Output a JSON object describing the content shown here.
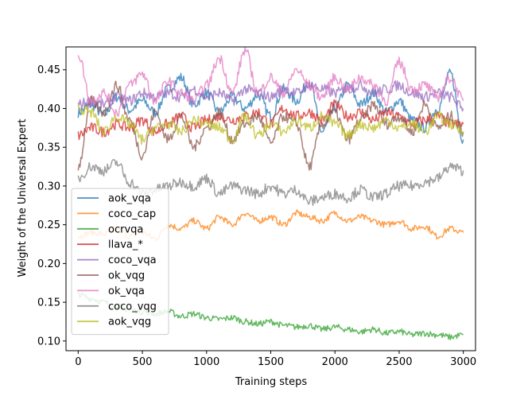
{
  "chart_data": {
    "type": "line",
    "title": "",
    "xlabel": "Training steps",
    "ylabel": "Weight of the Universal Expert",
    "xlim": [
      -95,
      3095
    ],
    "ylim": [
      0.0875,
      0.4795
    ],
    "x_ticks": [
      0,
      500,
      1000,
      1500,
      2000,
      2500,
      3000
    ],
    "y_ticks": [
      0.1,
      0.15,
      0.2,
      0.25,
      0.3,
      0.35,
      0.4,
      0.45
    ],
    "grid": false,
    "legend_position": "lower-left",
    "series": [
      {
        "name": "aok_vqa",
        "color": "#1f77b4",
        "points": [
          [
            0,
            0.395
          ],
          [
            100,
            0.405
          ],
          [
            200,
            0.392
          ],
          [
            300,
            0.415
          ],
          [
            400,
            0.398
          ],
          [
            500,
            0.41
          ],
          [
            600,
            0.395
          ],
          [
            700,
            0.425
          ],
          [
            800,
            0.44
          ],
          [
            900,
            0.405
          ],
          [
            1000,
            0.42
          ],
          [
            1100,
            0.395
          ],
          [
            1200,
            0.415
          ],
          [
            1300,
            0.4
          ],
          [
            1400,
            0.418
          ],
          [
            1500,
            0.39
          ],
          [
            1600,
            0.425
          ],
          [
            1700,
            0.41
          ],
          [
            1800,
            0.435
          ],
          [
            1900,
            0.37
          ],
          [
            2000,
            0.4
          ],
          [
            2100,
            0.43
          ],
          [
            2200,
            0.405
          ],
          [
            2300,
            0.42
          ],
          [
            2400,
            0.395
          ],
          [
            2500,
            0.41
          ],
          [
            2600,
            0.385
          ],
          [
            2700,
            0.375
          ],
          [
            2800,
            0.4
          ],
          [
            2900,
            0.445
          ],
          [
            3000,
            0.36
          ]
        ]
      },
      {
        "name": "coco_cap",
        "color": "#ff7f0e",
        "points": [
          [
            0,
            0.235
          ],
          [
            100,
            0.24
          ],
          [
            200,
            0.238
          ],
          [
            300,
            0.245
          ],
          [
            400,
            0.235
          ],
          [
            500,
            0.24
          ],
          [
            600,
            0.232
          ],
          [
            700,
            0.25
          ],
          [
            800,
            0.245
          ],
          [
            900,
            0.255
          ],
          [
            1000,
            0.245
          ],
          [
            1100,
            0.26
          ],
          [
            1200,
            0.25
          ],
          [
            1300,
            0.265
          ],
          [
            1400,
            0.255
          ],
          [
            1500,
            0.26
          ],
          [
            1600,
            0.25
          ],
          [
            1700,
            0.265
          ],
          [
            1800,
            0.26
          ],
          [
            1900,
            0.255
          ],
          [
            2000,
            0.265
          ],
          [
            2100,
            0.255
          ],
          [
            2200,
            0.26
          ],
          [
            2300,
            0.255
          ],
          [
            2400,
            0.25
          ],
          [
            2500,
            0.255
          ],
          [
            2600,
            0.245
          ],
          [
            2700,
            0.248
          ],
          [
            2800,
            0.235
          ],
          [
            2900,
            0.245
          ],
          [
            3000,
            0.24
          ]
        ]
      },
      {
        "name": "ocrvqa",
        "color": "#2ca02c",
        "points": [
          [
            0,
            0.16
          ],
          [
            100,
            0.155
          ],
          [
            200,
            0.15
          ],
          [
            300,
            0.145
          ],
          [
            400,
            0.14
          ],
          [
            500,
            0.138
          ],
          [
            600,
            0.135
          ],
          [
            700,
            0.138
          ],
          [
            800,
            0.132
          ],
          [
            900,
            0.135
          ],
          [
            1000,
            0.13
          ],
          [
            1100,
            0.128
          ],
          [
            1200,
            0.13
          ],
          [
            1300,
            0.125
          ],
          [
            1400,
            0.122
          ],
          [
            1500,
            0.125
          ],
          [
            1600,
            0.12
          ],
          [
            1700,
            0.118
          ],
          [
            1800,
            0.12
          ],
          [
            1900,
            0.115
          ],
          [
            2000,
            0.118
          ],
          [
            2100,
            0.115
          ],
          [
            2200,
            0.112
          ],
          [
            2300,
            0.115
          ],
          [
            2400,
            0.11
          ],
          [
            2500,
            0.112
          ],
          [
            2600,
            0.108
          ],
          [
            2700,
            0.11
          ],
          [
            2800,
            0.108
          ],
          [
            2900,
            0.105
          ],
          [
            3000,
            0.108
          ]
        ]
      },
      {
        "name": "llava_*",
        "color": "#d62728",
        "points": [
          [
            0,
            0.365
          ],
          [
            100,
            0.375
          ],
          [
            200,
            0.37
          ],
          [
            300,
            0.38
          ],
          [
            400,
            0.375
          ],
          [
            500,
            0.385
          ],
          [
            600,
            0.37
          ],
          [
            700,
            0.38
          ],
          [
            800,
            0.39
          ],
          [
            900,
            0.375
          ],
          [
            1000,
            0.385
          ],
          [
            1100,
            0.39
          ],
          [
            1200,
            0.385
          ],
          [
            1300,
            0.39
          ],
          [
            1400,
            0.395
          ],
          [
            1500,
            0.38
          ],
          [
            1600,
            0.4
          ],
          [
            1700,
            0.39
          ],
          [
            1800,
            0.395
          ],
          [
            1900,
            0.385
          ],
          [
            2000,
            0.405
          ],
          [
            2100,
            0.39
          ],
          [
            2200,
            0.395
          ],
          [
            2300,
            0.385
          ],
          [
            2400,
            0.395
          ],
          [
            2500,
            0.39
          ],
          [
            2600,
            0.38
          ],
          [
            2700,
            0.385
          ],
          [
            2800,
            0.39
          ],
          [
            2900,
            0.38
          ],
          [
            3000,
            0.38
          ]
        ]
      },
      {
        "name": "coco_vqa",
        "color": "#9467bd",
        "points": [
          [
            0,
            0.405
          ],
          [
            100,
            0.41
          ],
          [
            200,
            0.405
          ],
          [
            300,
            0.415
          ],
          [
            400,
            0.41
          ],
          [
            500,
            0.42
          ],
          [
            600,
            0.415
          ],
          [
            700,
            0.42
          ],
          [
            800,
            0.415
          ],
          [
            900,
            0.425
          ],
          [
            1000,
            0.415
          ],
          [
            1100,
            0.42
          ],
          [
            1200,
            0.41
          ],
          [
            1300,
            0.425
          ],
          [
            1400,
            0.42
          ],
          [
            1500,
            0.415
          ],
          [
            1600,
            0.425
          ],
          [
            1700,
            0.42
          ],
          [
            1800,
            0.43
          ],
          [
            1900,
            0.425
          ],
          [
            2000,
            0.42
          ],
          [
            2100,
            0.425
          ],
          [
            2200,
            0.43
          ],
          [
            2300,
            0.42
          ],
          [
            2400,
            0.425
          ],
          [
            2500,
            0.43
          ],
          [
            2600,
            0.42
          ],
          [
            2700,
            0.415
          ],
          [
            2800,
            0.42
          ],
          [
            2900,
            0.415
          ],
          [
            3000,
            0.4
          ]
        ]
      },
      {
        "name": "ok_vqg",
        "color": "#8c564b",
        "points": [
          [
            0,
            0.325
          ],
          [
            100,
            0.41
          ],
          [
            200,
            0.395
          ],
          [
            300,
            0.43
          ],
          [
            400,
            0.385
          ],
          [
            500,
            0.34
          ],
          [
            600,
            0.395
          ],
          [
            700,
            0.36
          ],
          [
            800,
            0.39
          ],
          [
            900,
            0.35
          ],
          [
            1000,
            0.375
          ],
          [
            1100,
            0.395
          ],
          [
            1200,
            0.36
          ],
          [
            1300,
            0.38
          ],
          [
            1400,
            0.39
          ],
          [
            1500,
            0.355
          ],
          [
            1600,
            0.39
          ],
          [
            1700,
            0.38
          ],
          [
            1800,
            0.325
          ],
          [
            1900,
            0.38
          ],
          [
            2000,
            0.395
          ],
          [
            2100,
            0.36
          ],
          [
            2200,
            0.385
          ],
          [
            2300,
            0.405
          ],
          [
            2400,
            0.38
          ],
          [
            2500,
            0.39
          ],
          [
            2600,
            0.37
          ],
          [
            2700,
            0.405
          ],
          [
            2800,
            0.375
          ],
          [
            2900,
            0.39
          ],
          [
            3000,
            0.37
          ]
        ]
      },
      {
        "name": "ok_vqa",
        "color": "#e377c2",
        "points": [
          [
            0,
            0.47
          ],
          [
            100,
            0.41
          ],
          [
            200,
            0.42
          ],
          [
            300,
            0.395
          ],
          [
            400,
            0.43
          ],
          [
            500,
            0.445
          ],
          [
            600,
            0.41
          ],
          [
            700,
            0.435
          ],
          [
            800,
            0.42
          ],
          [
            900,
            0.41
          ],
          [
            1000,
            0.43
          ],
          [
            1100,
            0.465
          ],
          [
            1200,
            0.42
          ],
          [
            1300,
            0.475
          ],
          [
            1400,
            0.42
          ],
          [
            1500,
            0.44
          ],
          [
            1600,
            0.42
          ],
          [
            1700,
            0.45
          ],
          [
            1800,
            0.43
          ],
          [
            1900,
            0.415
          ],
          [
            2000,
            0.44
          ],
          [
            2100,
            0.425
          ],
          [
            2200,
            0.44
          ],
          [
            2300,
            0.43
          ],
          [
            2400,
            0.41
          ],
          [
            2500,
            0.46
          ],
          [
            2600,
            0.425
          ],
          [
            2700,
            0.43
          ],
          [
            2800,
            0.415
          ],
          [
            2900,
            0.44
          ],
          [
            3000,
            0.41
          ]
        ]
      },
      {
        "name": "coco_vqg",
        "color": "#7f7f7f",
        "points": [
          [
            0,
            0.31
          ],
          [
            100,
            0.325
          ],
          [
            200,
            0.32
          ],
          [
            300,
            0.33
          ],
          [
            400,
            0.305
          ],
          [
            500,
            0.29
          ],
          [
            600,
            0.295
          ],
          [
            700,
            0.3
          ],
          [
            800,
            0.305
          ],
          [
            900,
            0.3
          ],
          [
            1000,
            0.31
          ],
          [
            1100,
            0.29
          ],
          [
            1200,
            0.3
          ],
          [
            1300,
            0.295
          ],
          [
            1400,
            0.29
          ],
          [
            1500,
            0.3
          ],
          [
            1600,
            0.29
          ],
          [
            1700,
            0.295
          ],
          [
            1800,
            0.28
          ],
          [
            1900,
            0.285
          ],
          [
            2000,
            0.29
          ],
          [
            2100,
            0.285
          ],
          [
            2200,
            0.295
          ],
          [
            2300,
            0.285
          ],
          [
            2400,
            0.29
          ],
          [
            2500,
            0.3
          ],
          [
            2600,
            0.3
          ],
          [
            2700,
            0.305
          ],
          [
            2800,
            0.31
          ],
          [
            2900,
            0.325
          ],
          [
            3000,
            0.32
          ]
        ]
      },
      {
        "name": "aok_vqg",
        "color": "#bcbd22",
        "points": [
          [
            0,
            0.4
          ],
          [
            100,
            0.395
          ],
          [
            200,
            0.37
          ],
          [
            300,
            0.39
          ],
          [
            400,
            0.38
          ],
          [
            500,
            0.36
          ],
          [
            600,
            0.375
          ],
          [
            700,
            0.38
          ],
          [
            800,
            0.37
          ],
          [
            900,
            0.385
          ],
          [
            1000,
            0.38
          ],
          [
            1100,
            0.375
          ],
          [
            1200,
            0.36
          ],
          [
            1300,
            0.39
          ],
          [
            1400,
            0.365
          ],
          [
            1500,
            0.38
          ],
          [
            1600,
            0.37
          ],
          [
            1700,
            0.385
          ],
          [
            1800,
            0.375
          ],
          [
            1900,
            0.39
          ],
          [
            2000,
            0.38
          ],
          [
            2100,
            0.365
          ],
          [
            2200,
            0.38
          ],
          [
            2300,
            0.375
          ],
          [
            2400,
            0.385
          ],
          [
            2500,
            0.375
          ],
          [
            2600,
            0.38
          ],
          [
            2700,
            0.37
          ],
          [
            2800,
            0.39
          ],
          [
            2900,
            0.38
          ],
          [
            3000,
            0.37
          ]
        ]
      }
    ]
  }
}
